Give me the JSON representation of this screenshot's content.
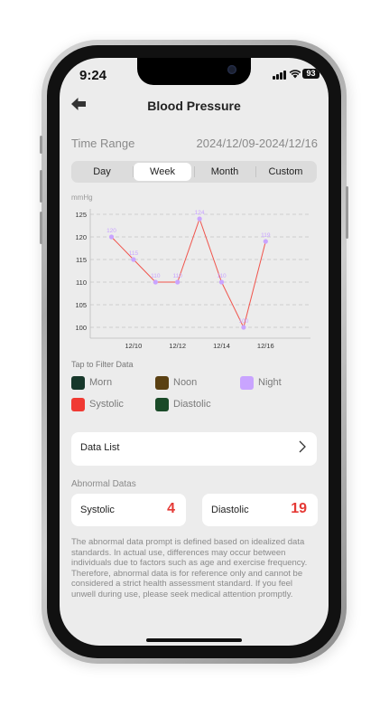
{
  "status_bar": {
    "time": "9:24",
    "battery": "93"
  },
  "header": {
    "title": "Blood Pressure"
  },
  "time_range": {
    "label": "Time Range",
    "value": "2024/12/09-2024/12/16"
  },
  "segments": {
    "day": "Day",
    "week": "Week",
    "month": "Month",
    "custom": "Custom",
    "selected": "Week"
  },
  "chart_data": {
    "type": "line",
    "ylabel": "mmHg",
    "ylim": [
      100,
      125
    ],
    "yticks": [
      125,
      120,
      115,
      110,
      105,
      100
    ],
    "x": [
      "12/09",
      "12/10",
      "12/11",
      "12/12",
      "12/13",
      "12/14",
      "12/15",
      "12/16"
    ],
    "xtick_labels": [
      "12/10",
      "12/12",
      "12/14",
      "12/16"
    ],
    "series": [
      {
        "values": [
          120,
          115,
          110,
          110,
          124,
          110,
          100,
          119
        ],
        "labels": [
          "120",
          "115",
          "110",
          "110",
          "124",
          "110",
          "100",
          "119"
        ]
      }
    ],
    "line_color": "#f0544c",
    "marker_color": "#c9a4ff",
    "grid": true
  },
  "filter": {
    "label": "Tap to Filter Data",
    "items": [
      {
        "label": "Morn",
        "color": "#16372a"
      },
      {
        "label": "Noon",
        "color": "#5a4012"
      },
      {
        "label": "Night",
        "color": "#c9a4ff"
      },
      {
        "label": "Systolic",
        "color": "#f03a33"
      },
      {
        "label": "Diastolic",
        "color": "#1a4a28"
      }
    ]
  },
  "data_list": {
    "label": "Data List"
  },
  "abnormal": {
    "label": "Abnormal Datas",
    "systolic": {
      "name": "Systolic",
      "count": "4"
    },
    "diastolic": {
      "name": "Diastolic",
      "count": "19"
    }
  },
  "note": "The abnormal data prompt is defined based on idealized data standards. In actual use, differences may occur between individuals due to factors such as age and exercise frequency. Therefore, abnormal data is for reference only and cannot be considered a strict health assessment standard. If you feel unwell during use, please seek medical attention promptly."
}
